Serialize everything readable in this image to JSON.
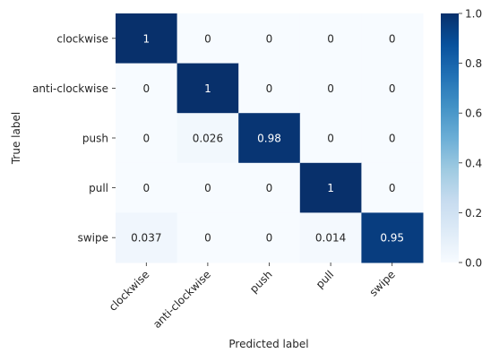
{
  "chart_data": {
    "type": "heatmap",
    "xlabel": "Predicted label",
    "ylabel": "True label",
    "x_categories": [
      "clockwise",
      "anti-clockwise",
      "push",
      "pull",
      "swipe"
    ],
    "y_categories": [
      "clockwise",
      "anti-clockwise",
      "push",
      "pull",
      "swipe"
    ],
    "values": [
      [
        1,
        0,
        0,
        0,
        0
      ],
      [
        0,
        1,
        0,
        0,
        0
      ],
      [
        0,
        0.026,
        0.98,
        0,
        0
      ],
      [
        0,
        0,
        0,
        1,
        0
      ],
      [
        0.037,
        0,
        0,
        0.014,
        0.95
      ]
    ],
    "cell_labels": [
      [
        "1",
        "0",
        "0",
        "0",
        "0"
      ],
      [
        "0",
        "1",
        "0",
        "0",
        "0"
      ],
      [
        "0",
        "0.026",
        "0.98",
        "0",
        "0"
      ],
      [
        "0",
        "0",
        "0",
        "1",
        "0"
      ],
      [
        "0.037",
        "0",
        "0",
        "0.014",
        "0.95"
      ]
    ],
    "colormap": "Blues",
    "colors": {
      "low": "#f7fbff",
      "high": "#08306b"
    },
    "colorbar": {
      "range": [
        0.0,
        1.0
      ],
      "ticks": [
        0.0,
        0.2,
        0.4,
        0.6,
        0.8,
        1.0
      ],
      "tick_labels": [
        "0.0",
        "0.2",
        "0.4",
        "0.6",
        "0.8",
        "1.0"
      ]
    },
    "grid": false
  }
}
